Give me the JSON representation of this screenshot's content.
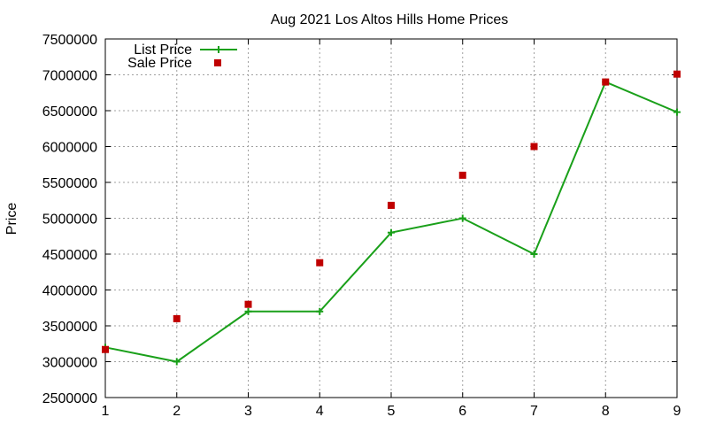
{
  "chart_data": {
    "type": "line",
    "title": "Aug 2021 Los Altos Hills Home Prices",
    "xlabel": "",
    "ylabel": "Price",
    "x": [
      1,
      2,
      3,
      4,
      5,
      6,
      7,
      8,
      9
    ],
    "xlim": [
      1,
      9
    ],
    "ylim": [
      2500000,
      7500000
    ],
    "xticks": [
      "1",
      "2",
      "3",
      "4",
      "5",
      "6",
      "7",
      "8",
      "9"
    ],
    "yticks": [
      "2500000",
      "3000000",
      "3500000",
      "4000000",
      "4500000",
      "5000000",
      "5500000",
      "6000000",
      "6500000",
      "7000000",
      "7500000"
    ],
    "grid": true,
    "legend_position": "top-left",
    "series": [
      {
        "name": "List Price",
        "style": "line with plus markers",
        "color": "#1aa01a",
        "values": [
          3200000,
          3000000,
          3700000,
          3700000,
          4800000,
          5000000,
          4500000,
          6900000,
          6480000
        ]
      },
      {
        "name": "Sale Price",
        "style": "square points",
        "color": "#c00000",
        "values": [
          3170000,
          3600000,
          3800000,
          4380000,
          5180000,
          5600000,
          6000000,
          6900000,
          7010000
        ]
      }
    ]
  }
}
